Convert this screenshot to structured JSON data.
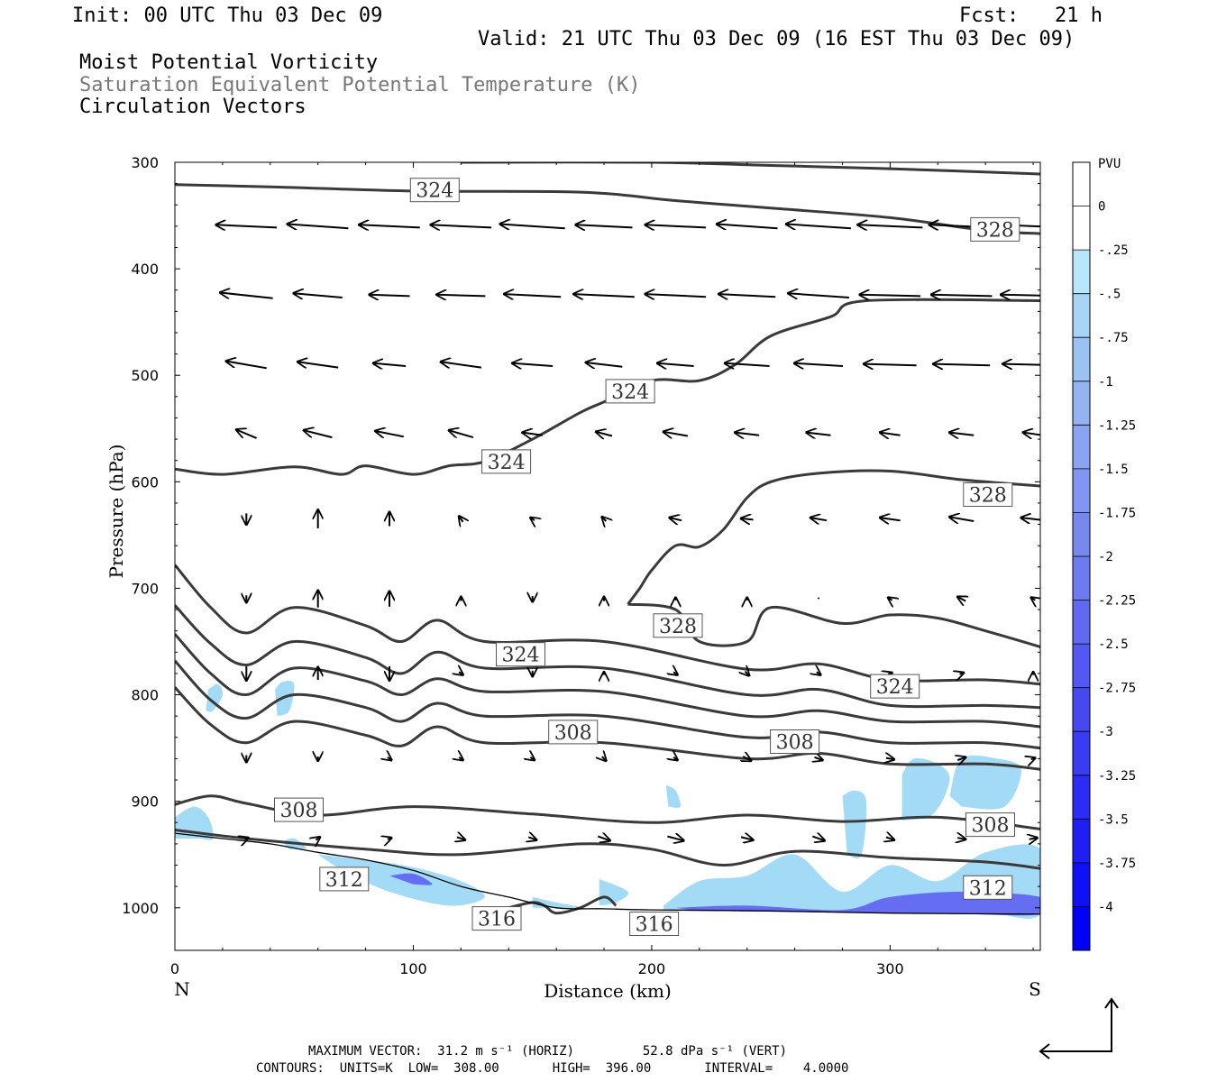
{
  "header": {
    "init": "Init: 00 UTC Thu 03 Dec 09",
    "fcst": "Fcst:   21 h",
    "valid": "Valid: 21 UTC Thu 03 Dec 09 (16 EST Thu 03 Dec 09)",
    "field1": "Moist Potential Vorticity",
    "field2": "Saturation Equivalent Potential Temperature (K)",
    "field3": "Circulation Vectors"
  },
  "footer": {
    "max_vector": "MAXIMUM VECTOR:  31.2 m s⁻¹ (HORIZ)         52.8 dPa s⁻¹ (VERT)",
    "contours": "CONTOURS:  UNITS=K  LOW=  308.00       HIGH=  396.00       INTERVAL=    4.0000"
  },
  "colors": {
    "contour": "#3a3a3a",
    "shade_light": "#9ed8f4",
    "shade_dark": "#0000e6"
  },
  "chart_data": {
    "type": "contour",
    "title": "Moist Potential Vorticity / Saturation Equivalent Potential Temperature (K) / Circulation Vectors",
    "xlabel": "Distance (km)",
    "ylabel": "Pressure (hPa)",
    "xlim": [
      0,
      363
    ],
    "ylim": [
      1040,
      300
    ],
    "xticks": [
      0,
      100,
      200,
      300
    ],
    "xtick_labels": [
      "0",
      "100",
      "200",
      "300"
    ],
    "yticks": [
      300,
      400,
      500,
      600,
      700,
      800,
      900,
      1000
    ],
    "ytick_labels": [
      "300",
      "400",
      "500",
      "600",
      "700",
      "800",
      "900",
      "1000"
    ],
    "x_endpoints": {
      "left": "N",
      "right": "S"
    },
    "contour_labels": [
      {
        "text": "324",
        "x": 109,
        "p": 326
      },
      {
        "text": "328",
        "x": 344,
        "p": 363
      },
      {
        "text": "324",
        "x": 191,
        "p": 515
      },
      {
        "text": "324",
        "x": 139,
        "p": 581
      },
      {
        "text": "328",
        "x": 341,
        "p": 612
      },
      {
        "text": "328",
        "x": 211,
        "p": 735
      },
      {
        "text": "324",
        "x": 145,
        "p": 762
      },
      {
        "text": "324",
        "x": 302,
        "p": 792
      },
      {
        "text": "308",
        "x": 167,
        "p": 835
      },
      {
        "text": "308",
        "x": 260,
        "p": 844
      },
      {
        "text": "308",
        "x": 52,
        "p": 908
      },
      {
        "text": "308",
        "x": 342,
        "p": 922
      },
      {
        "text": "312",
        "x": 71,
        "p": 973
      },
      {
        "text": "312",
        "x": 341,
        "p": 981
      },
      {
        "text": "316",
        "x": 135,
        "p": 1010
      },
      {
        "text": "316",
        "x": 201,
        "p": 1015
      }
    ],
    "contours": [
      {
        "level": 328,
        "x": [
          0,
          40,
          100,
          170,
          210,
          250,
          300,
          340,
          363
        ],
        "p": [
          321,
          323,
          327,
          328,
          336,
          343,
          352,
          364,
          367
        ]
      },
      {
        "level": 328,
        "x": [
          120,
          200,
          250,
          300,
          363
        ],
        "p": [
          300,
          300,
          303,
          306,
          311
        ]
      },
      {
        "level": 324,
        "x": [
          0,
          20,
          50,
          70,
          80,
          100,
          115,
          130,
          150,
          170,
          180,
          200,
          220,
          235,
          250,
          275,
          290,
          363
        ],
        "p": [
          588,
          593,
          586,
          593,
          585,
          593,
          585,
          581,
          560,
          535,
          525,
          505,
          505,
          490,
          463,
          445,
          430,
          430
        ]
      },
      {
        "level": 328,
        "x": [
          190,
          195,
          200,
          210,
          220,
          230,
          240,
          250,
          270,
          300,
          330,
          363
        ],
        "p": [
          715,
          700,
          683,
          660,
          661,
          645,
          615,
          600,
          592,
          590,
          598,
          604
        ]
      },
      {
        "level": 328,
        "x": [
          190,
          210,
          220,
          240,
          250,
          280,
          300,
          320,
          340,
          363
        ],
        "p": [
          715,
          720,
          750,
          750,
          718,
          733,
          725,
          728,
          740,
          755
        ]
      },
      {
        "level": 324,
        "x": [
          0,
          15,
          30,
          50,
          80,
          95,
          110,
          130,
          180,
          240,
          270,
          300,
          340,
          363
        ],
        "p": [
          678,
          718,
          742,
          718,
          735,
          750,
          730,
          750,
          750,
          776,
          771,
          786,
          786,
          790
        ]
      },
      {
        "level": 320,
        "x": [
          0,
          15,
          30,
          50,
          80,
          95,
          110,
          130,
          180,
          240,
          270,
          300,
          340,
          363
        ],
        "p": [
          716,
          752,
          772,
          750,
          765,
          780,
          760,
          775,
          775,
          800,
          795,
          810,
          810,
          812
        ]
      },
      {
        "level": 316,
        "x": [
          0,
          15,
          30,
          50,
          80,
          95,
          110,
          130,
          180,
          240,
          270,
          300,
          340,
          363
        ],
        "p": [
          743,
          780,
          800,
          775,
          787,
          800,
          785,
          797,
          797,
          820,
          815,
          825,
          825,
          830
        ]
      },
      {
        "level": 312,
        "x": [
          0,
          15,
          30,
          50,
          80,
          95,
          110,
          130,
          180,
          240,
          270,
          300,
          340,
          363
        ],
        "p": [
          768,
          805,
          822,
          800,
          812,
          825,
          808,
          820,
          820,
          840,
          835,
          845,
          845,
          850
        ]
      },
      {
        "level": 308,
        "x": [
          0,
          15,
          30,
          50,
          80,
          95,
          110,
          130,
          180,
          240,
          270,
          300,
          340,
          363
        ],
        "p": [
          793,
          828,
          845,
          825,
          838,
          848,
          830,
          845,
          845,
          860,
          855,
          865,
          865,
          870
        ]
      },
      {
        "level": 308,
        "x": [
          0,
          15,
          30,
          60,
          100,
          150,
          200,
          240,
          280,
          320,
          363
        ],
        "p": [
          903,
          895,
          902,
          913,
          905,
          912,
          920,
          913,
          919,
          915,
          926
        ]
      },
      {
        "level": 312,
        "x": [
          0,
          30,
          80,
          120,
          170,
          200,
          230,
          260,
          300,
          340,
          363
        ],
        "p": [
          927,
          935,
          945,
          950,
          940,
          945,
          960,
          947,
          953,
          957,
          963
        ]
      },
      {
        "level": 316,
        "x": [
          140,
          150,
          155,
          160,
          170,
          180,
          185
        ],
        "p": [
          1000,
          995,
          998,
          1005,
          1000,
          990,
          998
        ]
      }
    ],
    "terrain": {
      "x": [
        0,
        20,
        40,
        60,
        80,
        100,
        120,
        140,
        160,
        180,
        200,
        250,
        300,
        363
      ],
      "p": [
        930,
        935,
        940,
        948,
        955,
        965,
        980,
        990,
        1000,
        1001,
        1002,
        1003,
        1005,
        1006
      ]
    },
    "pv_colorbar": {
      "label": "PVU",
      "levels": [
        "0",
        "-.25",
        "-.5",
        "-.75",
        "-1",
        "-1.25",
        "-1.5",
        "-1.75",
        "-2",
        "-2.25",
        "-2.5",
        "-2.75",
        "-3",
        "-3.25",
        "-3.5",
        "-3.75",
        "-4"
      ],
      "colors": [
        "#ffffff",
        "#ffffff",
        "#b8e6fb",
        "#a8d4f6",
        "#9cc2f4",
        "#93b3f2",
        "#8aa4f1",
        "#8096f0",
        "#7788ef",
        "#6d7af0",
        "#6169f1",
        "#5458f2",
        "#4848f3",
        "#3b3bf3",
        "#2d2cf4",
        "#1f1ef5",
        "#1010f7",
        "#0000f8"
      ]
    },
    "pv_regions": [
      {
        "x": [
          0,
          8,
          14,
          16,
          10,
          0
        ],
        "p": [
          915,
          905,
          915,
          935,
          935,
          935
        ]
      },
      {
        "x": [
          14,
          18,
          20,
          16,
          13
        ],
        "p": [
          795,
          790,
          800,
          815,
          815
        ]
      },
      {
        "x": [
          42,
          45,
          50,
          48,
          43
        ],
        "p": [
          795,
          788,
          790,
          815,
          820
        ]
      },
      {
        "x": [
          45,
          50,
          55,
          48
        ],
        "p": [
          938,
          935,
          944,
          945
        ]
      },
      {
        "x": [
          60,
          80,
          100,
          120,
          130,
          115,
          90,
          70
        ],
        "p": [
          950,
          955,
          962,
          975,
          990,
          998,
          985,
          965
        ]
      },
      {
        "x": [
          150,
          160,
          170,
          150
        ],
        "p": [
          990,
          995,
          1000,
          1000
        ]
      },
      {
        "x": [
          178,
          190,
          185,
          178
        ],
        "p": [
          973,
          985,
          995,
          998
        ]
      },
      {
        "x": [
          205,
          220,
          240,
          260,
          280,
          300,
          320,
          340,
          363,
          363,
          340,
          300,
          260,
          220,
          205
        ],
        "p": [
          998,
          975,
          970,
          950,
          985,
          960,
          975,
          948,
          945,
          1006,
          1005,
          1004,
          1003,
          1003,
          1002
        ]
      },
      {
        "x": [
          206,
          210,
          212,
          207
        ],
        "p": [
          885,
          890,
          905,
          905
        ]
      },
      {
        "x": [
          280,
          285,
          290,
          288,
          282
        ],
        "p": [
          895,
          890,
          900,
          950,
          950
        ]
      },
      {
        "x": [
          305,
          310,
          320,
          325,
          318,
          305
        ],
        "p": [
          875,
          860,
          865,
          880,
          912,
          918
        ]
      },
      {
        "x": [
          325,
          330,
          345,
          355,
          348,
          330
        ],
        "p": [
          895,
          860,
          860,
          870,
          905,
          905
        ]
      }
    ],
    "pv_dark_regions": [
      {
        "x": [
          90,
          100,
          108,
          100
        ],
        "p": [
          970,
          968,
          978,
          978
        ]
      },
      {
        "x": [
          210,
          240,
          280,
          300,
          330,
          363,
          363,
          330,
          300,
          260,
          220
        ],
        "p": [
          1000,
          998,
          1002,
          990,
          985,
          990,
          1006,
          1006,
          1005,
          1004,
          1003
        ]
      }
    ],
    "vectors": {
      "rows_p": [
        360,
        425,
        490,
        555,
        635,
        710,
        780,
        860,
        935
      ],
      "x": [
        30,
        60,
        90,
        120,
        150,
        180,
        210,
        240,
        270,
        300,
        330,
        360
      ],
      "u": [
        [
          -1.5,
          -1.5,
          -1.5,
          -1.5,
          -1.6,
          -1.4,
          -1.5,
          -1.5,
          -1.6,
          -1.6,
          -1.6,
          -1.7
        ],
        [
          -1.3,
          -1.2,
          -1.0,
          -1.2,
          -1.4,
          -1.5,
          -1.5,
          -1.4,
          -1.5,
          -1.5,
          -1.5,
          -1.6
        ],
        [
          -1.0,
          -1.0,
          -0.8,
          -1.0,
          -1.0,
          -0.9,
          -0.9,
          -1.1,
          -1.2,
          -1.3,
          -1.4,
          -1.5
        ],
        [
          -0.5,
          -0.7,
          -0.7,
          -0.6,
          -0.5,
          -0.4,
          -0.6,
          -0.6,
          -0.6,
          -0.5,
          -0.6,
          -0.5
        ],
        [
          0,
          0,
          0,
          -0.1,
          -0.1,
          -0.1,
          -0.3,
          -0.3,
          -0.4,
          -0.5,
          -0.6,
          -0.6
        ],
        [
          0,
          0,
          0,
          0,
          0,
          0,
          0,
          0,
          0,
          -0.1,
          -0.2,
          -0.1
        ],
        [
          0,
          0,
          0,
          0.1,
          0,
          0,
          0.1,
          0.1,
          0.1,
          0.1,
          0.1,
          0
        ],
        [
          0,
          0,
          0.1,
          0.1,
          0.1,
          0.1,
          0.1,
          0.2,
          0.2,
          0.2,
          0.2,
          0.1
        ],
        [
          0.1,
          0.1,
          0.1,
          0.2,
          0.2,
          0.3,
          0.4,
          0.3,
          0.3,
          0.2,
          0.2,
          0.2
        ]
      ],
      "w": [
        [
          0.2,
          0.3,
          0.2,
          0.2,
          0.3,
          0.2,
          0.2,
          0.3,
          0.3,
          0.2,
          0.2,
          0.2
        ],
        [
          0.4,
          0.3,
          0.1,
          0.1,
          0.2,
          0.2,
          0.2,
          0.2,
          0.3,
          0.1,
          0.1,
          0.1
        ],
        [
          0.5,
          0.4,
          0.2,
          0.4,
          0.2,
          0.3,
          0.2,
          0.2,
          0.2,
          0.1,
          0.1,
          0.1
        ],
        [
          0.6,
          0.5,
          0.4,
          0.5,
          0.2,
          0.3,
          0.3,
          0.2,
          0.2,
          0.2,
          0.2,
          0.2
        ],
        [
          -0.8,
          1.3,
          1.0,
          0.4,
          0.2,
          0.3,
          0.2,
          0.1,
          0.2,
          0.2,
          0.3,
          0.2
        ],
        [
          -0.5,
          1.2,
          1.1,
          0.3,
          -0.4,
          0.3,
          0.2,
          0.2,
          0.1,
          0.2,
          0.3,
          0.2
        ],
        [
          -1.0,
          0.9,
          -1.0,
          -0.2,
          -0.4,
          0.2,
          -0.2,
          -0.3,
          -0.2,
          0.1,
          0.1,
          0.2
        ],
        [
          -0.5,
          -0.3,
          -0.2,
          -0.2,
          -0.2,
          -0.3,
          -0.2,
          -0.3,
          -0.2,
          -0.1,
          0.2,
          0.1
        ],
        [
          0.1,
          0.2,
          0.1,
          -0.2,
          -0.2,
          -0.3,
          -0.3,
          -0.2,
          -0.3,
          -0.2,
          -0.1,
          0.1
        ]
      ]
    },
    "reference_vector": {
      "horizontal_ms": 31.2,
      "vertical_dPas": 52.8
    }
  }
}
